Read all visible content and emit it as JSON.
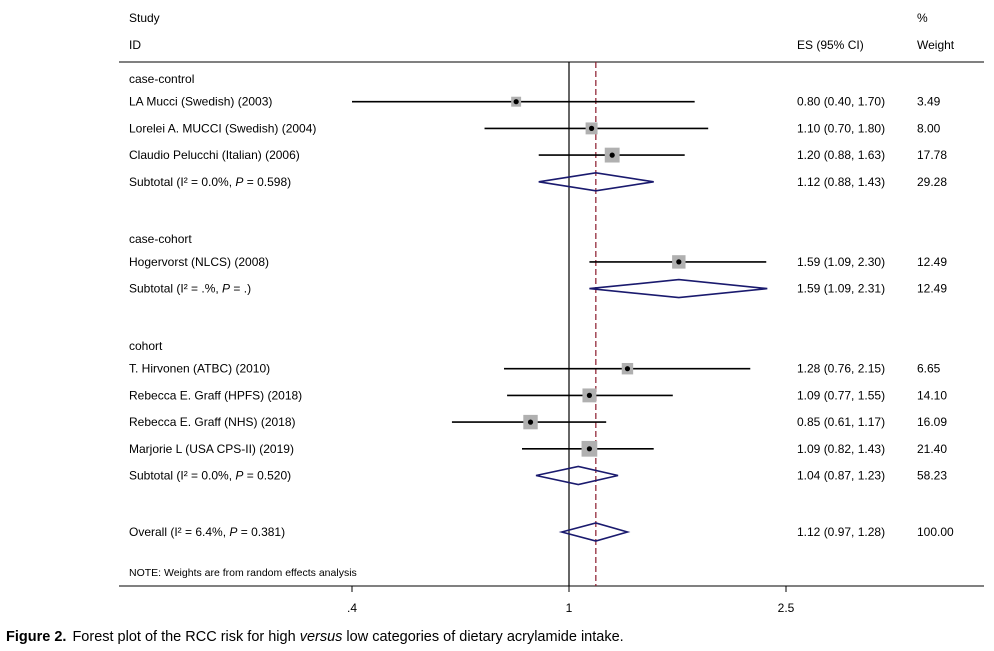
{
  "chart_data": {
    "type": "forest",
    "headers": {
      "study_line1": "Study",
      "study_line2": "ID",
      "es": "ES (95% CI)",
      "weight_line1": "%",
      "weight_line2": "Weight"
    },
    "x_ticks": [
      {
        "value": 0.4,
        "label": ".4"
      },
      {
        "value": 1,
        "label": "1"
      },
      {
        "value": 2.5,
        "label": "2.5"
      }
    ],
    "null_line": 1,
    "overall_effect_line": 1.12,
    "groups": [
      {
        "name": "case-control",
        "studies": [
          {
            "label": "LA Mucci (Swedish) (2003)",
            "es": 0.8,
            "lo": 0.4,
            "hi": 1.7,
            "ci_text": "0.80 (0.40, 1.70)",
            "weight": 3.49,
            "weight_text": "3.49"
          },
          {
            "label": "Lorelei A. MUCCI (Swedish) (2004)",
            "es": 1.1,
            "lo": 0.7,
            "hi": 1.8,
            "ci_text": "1.10 (0.70, 1.80)",
            "weight": 8.0,
            "weight_text": "8.00"
          },
          {
            "label": "Claudio Pelucchi (Italian) (2006)",
            "es": 1.2,
            "lo": 0.88,
            "hi": 1.63,
            "ci_text": "1.20 (0.88, 1.63)",
            "weight": 17.78,
            "weight_text": "17.78"
          }
        ],
        "subtotal": {
          "prefix": "Subtotal  (I² = ",
          "i2": "0.0%",
          "mid": ", ",
          "p_label": "P",
          "p_value": " = 0.598)",
          "es": 1.12,
          "lo": 0.88,
          "hi": 1.43,
          "ci_text": "1.12 (0.88, 1.43)",
          "weight_text": "29.28"
        }
      },
      {
        "name": "case-cohort",
        "studies": [
          {
            "label": "Hogervorst (NLCS) (2008)",
            "es": 1.59,
            "lo": 1.09,
            "hi": 2.3,
            "ci_text": "1.59 (1.09, 2.30)",
            "weight": 12.49,
            "weight_text": "12.49"
          }
        ],
        "subtotal": {
          "prefix": "Subtotal  (I² = ",
          "i2": ".%",
          "mid": ", ",
          "p_label": "P",
          "p_value": " = .)",
          "es": 1.59,
          "lo": 1.09,
          "hi": 2.31,
          "ci_text": "1.59 (1.09, 2.31)",
          "weight_text": "12.49"
        }
      },
      {
        "name": "cohort",
        "studies": [
          {
            "label": "T. Hirvonen (ATBC) (2010)",
            "es": 1.28,
            "lo": 0.76,
            "hi": 2.15,
            "ci_text": "1.28 (0.76, 2.15)",
            "weight": 6.65,
            "weight_text": "6.65"
          },
          {
            "label": "Rebecca E. Graff (HPFS) (2018)",
            "es": 1.09,
            "lo": 0.77,
            "hi": 1.55,
            "ci_text": "1.09 (0.77, 1.55)",
            "weight": 14.1,
            "weight_text": "14.10"
          },
          {
            "label": "Rebecca E. Graff (NHS) (2018)",
            "es": 0.85,
            "lo": 0.61,
            "hi": 1.17,
            "ci_text": "0.85 (0.61, 1.17)",
            "weight": 16.09,
            "weight_text": "16.09"
          },
          {
            "label": "Marjorie L (USA CPS-II) (2019)",
            "es": 1.09,
            "lo": 0.82,
            "hi": 1.43,
            "ci_text": "1.09 (0.82, 1.43)",
            "weight": 21.4,
            "weight_text": "21.40"
          }
        ],
        "subtotal": {
          "prefix": "Subtotal  (I² = ",
          "i2": "0.0%",
          "mid": ", ",
          "p_label": "P",
          "p_value": " = 0.520)",
          "es": 1.04,
          "lo": 0.87,
          "hi": 1.23,
          "ci_text": "1.04 (0.87, 1.23)",
          "weight_text": "58.23"
        }
      }
    ],
    "overall": {
      "prefix": "Overall  (I² = ",
      "i2": "6.4%",
      "mid": ", ",
      "p_label": "P",
      "p_value": " = 0.381)",
      "es": 1.12,
      "lo": 0.97,
      "hi": 1.28,
      "ci_text": "1.12 (0.97, 1.28)",
      "weight_text": "100.00"
    },
    "note": "NOTE: Weights are from random effects analysis",
    "colors": {
      "diamond": "#1a1a6e",
      "ref_line": "#8b1a2b",
      "box": "#b0b0b0",
      "axis": "#000000"
    }
  },
  "caption": {
    "label": "Figure 2.",
    "before": "Forest plot of the RCC risk for high ",
    "italic": "versus",
    "after": " low categories of dietary acrylamide intake."
  }
}
